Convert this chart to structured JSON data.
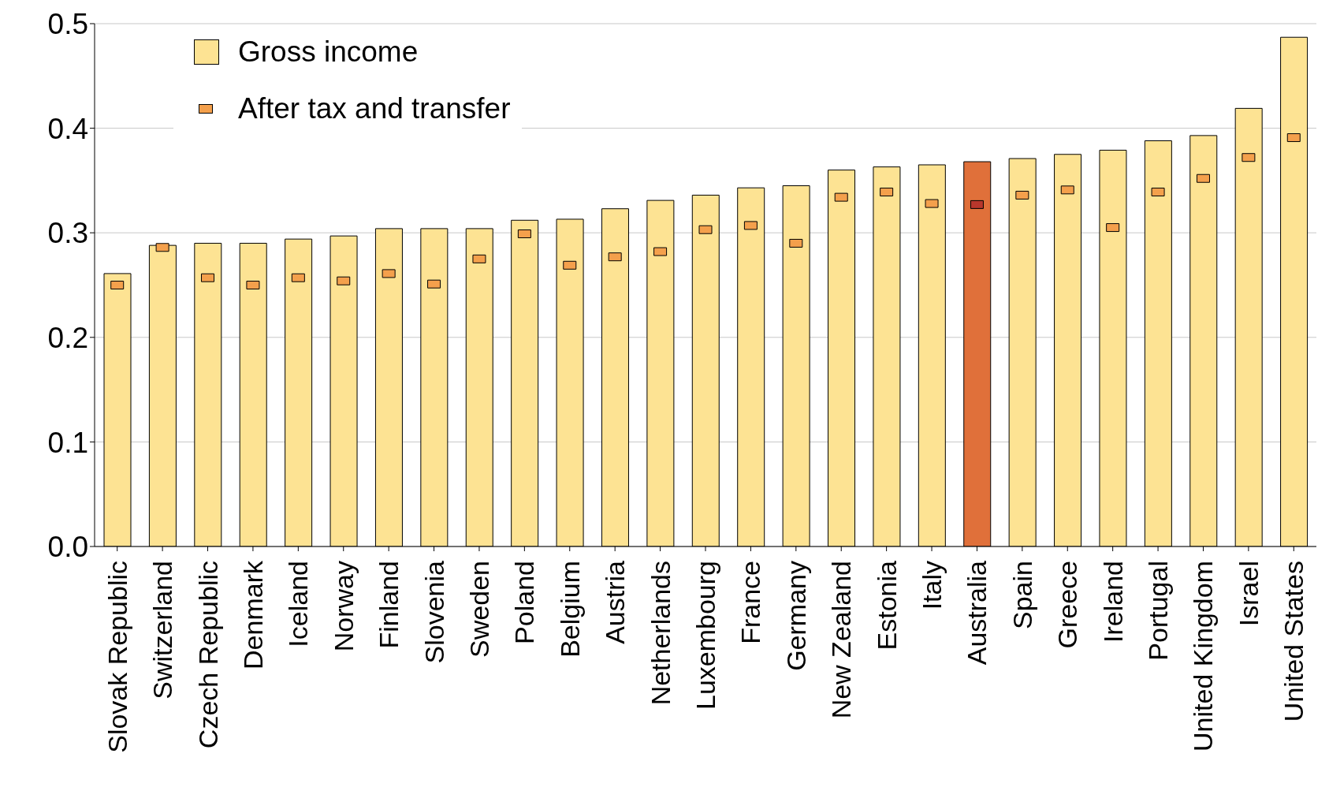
{
  "chart_data": {
    "type": "bar",
    "categories": [
      "Slovak Republic",
      "Switzerland",
      "Czech Republic",
      "Denmark",
      "Iceland",
      "Norway",
      "Finland",
      "Slovenia",
      "Sweden",
      "Poland",
      "Belgium",
      "Austria",
      "Netherlands",
      "Luxembourg",
      "France",
      "Germany",
      "New Zealand",
      "Estonia",
      "Italy",
      "Australia",
      "Spain",
      "Greece",
      "Ireland",
      "Portugal",
      "United Kingdom",
      "Israel",
      "United States"
    ],
    "series": [
      {
        "name": "Gross income",
        "type": "bar",
        "color": "#fde393",
        "colors": [
          "#fde393",
          "#fde393",
          "#fde393",
          "#fde393",
          "#fde393",
          "#fde393",
          "#fde393",
          "#fde393",
          "#fde393",
          "#fde393",
          "#fde393",
          "#fde393",
          "#fde393",
          "#fde393",
          "#fde393",
          "#fde393",
          "#fde393",
          "#fde393",
          "#fde393",
          "#e0703a",
          "#fde393",
          "#fde393",
          "#fde393",
          "#fde393",
          "#fde393",
          "#fde393",
          "#fde393"
        ],
        "values": [
          0.261,
          0.288,
          0.29,
          0.29,
          0.294,
          0.297,
          0.304,
          0.304,
          0.304,
          0.312,
          0.313,
          0.323,
          0.331,
          0.336,
          0.343,
          0.345,
          0.36,
          0.363,
          0.365,
          0.368,
          0.371,
          0.375,
          0.379,
          0.388,
          0.393,
          0.419,
          0.487
        ]
      },
      {
        "name": "After tax and transfer",
        "type": "scatter",
        "color": "#f4a04c",
        "colors": [
          "#f4a04c",
          "#f4a04c",
          "#f4a04c",
          "#f4a04c",
          "#f4a04c",
          "#f4a04c",
          "#f4a04c",
          "#f4a04c",
          "#f4a04c",
          "#f4a04c",
          "#f4a04c",
          "#f4a04c",
          "#f4a04c",
          "#f4a04c",
          "#f4a04c",
          "#f4a04c",
          "#f4a04c",
          "#f4a04c",
          "#f4a04c",
          "#b8372c",
          "#f4a04c",
          "#f4a04c",
          "#f4a04c",
          "#f4a04c",
          "#f4a04c",
          "#f4a04c",
          "#f4a04c"
        ],
        "values": [
          0.25,
          0.286,
          0.257,
          0.25,
          0.257,
          0.254,
          0.261,
          0.251,
          0.275,
          0.299,
          0.269,
          0.277,
          0.282,
          0.303,
          0.307,
          0.29,
          0.334,
          0.339,
          0.328,
          0.327,
          0.336,
          0.341,
          0.305,
          0.339,
          0.352,
          0.372,
          0.391
        ]
      }
    ],
    "ylim": [
      0,
      0.5
    ],
    "yticks": [
      {
        "value": 0,
        "label": "0.0"
      },
      {
        "value": 0.1,
        "label": "0.1"
      },
      {
        "value": 0.2,
        "label": "0.2"
      },
      {
        "value": 0.3,
        "label": "0.3"
      },
      {
        "value": 0.4,
        "label": "0.4"
      },
      {
        "value": 0.5,
        "label": "0.5"
      }
    ],
    "grid": "y",
    "legend": "top left"
  }
}
